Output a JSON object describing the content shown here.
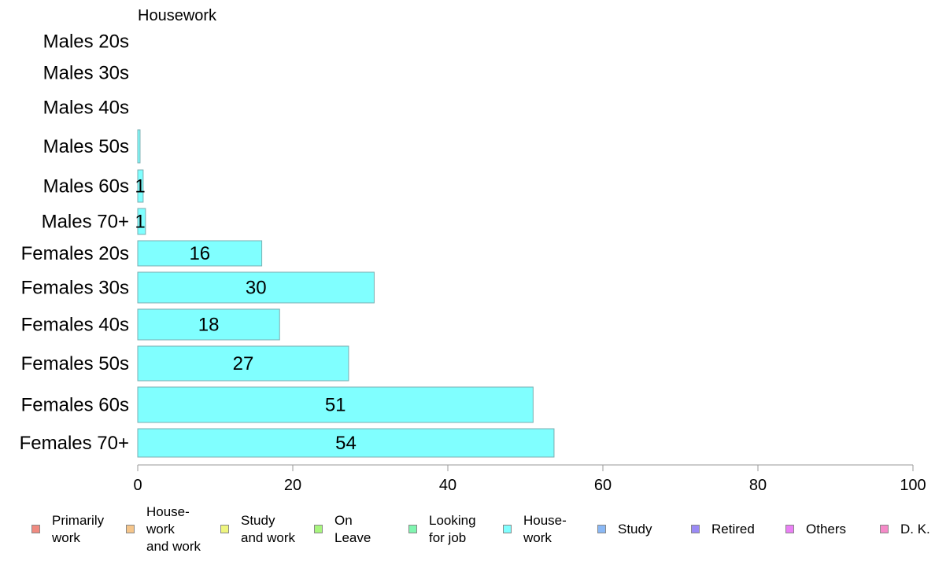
{
  "chart_data": {
    "type": "bar",
    "orientation": "horizontal",
    "title": "Housework",
    "categories": [
      "Males 20s",
      "Males 30s",
      "Males 40s",
      "Males 50s",
      "Males 60s",
      "Males 70+",
      "Females 20s",
      "Females 30s",
      "Females 40s",
      "Females 50s",
      "Females 60s",
      "Females 70+"
    ],
    "values": [
      0,
      0,
      0,
      0.3,
      0.7,
      1,
      16,
      30.5,
      18.3,
      27.2,
      51,
      53.7
    ],
    "data_labels": [
      "",
      "",
      "",
      "",
      "1",
      "1",
      "16",
      "30",
      "18",
      "27",
      "51",
      "54"
    ],
    "xlim": [
      0,
      100
    ],
    "x_ticks": [
      "0",
      "20",
      "40",
      "60",
      "80",
      "100"
    ],
    "grid": false,
    "bar_color": "#80ffff",
    "bar_edge_color": "#7aaeb0",
    "legend_position": "bottom",
    "legend": [
      {
        "lines": [
          "Primarily",
          "work"
        ],
        "color": "#f08a80"
      },
      {
        "lines": [
          "House-",
          "work",
          "and work"
        ],
        "color": "#f5c58a"
      },
      {
        "lines": [
          "Study",
          "and work"
        ],
        "color": "#eef57e"
      },
      {
        "lines": [
          "On",
          "Leave"
        ],
        "color": "#a8f57e"
      },
      {
        "lines": [
          "Looking",
          "for job"
        ],
        "color": "#80f5b0"
      },
      {
        "lines": [
          "House-",
          "work"
        ],
        "color": "#80ffff"
      },
      {
        "lines": [
          "Study"
        ],
        "color": "#8ab8f5"
      },
      {
        "lines": [
          "Retired"
        ],
        "color": "#9a8af5"
      },
      {
        "lines": [
          "Others"
        ],
        "color": "#ea80f5"
      },
      {
        "lines": [
          "D. K."
        ],
        "color": "#f58ac8"
      }
    ]
  }
}
